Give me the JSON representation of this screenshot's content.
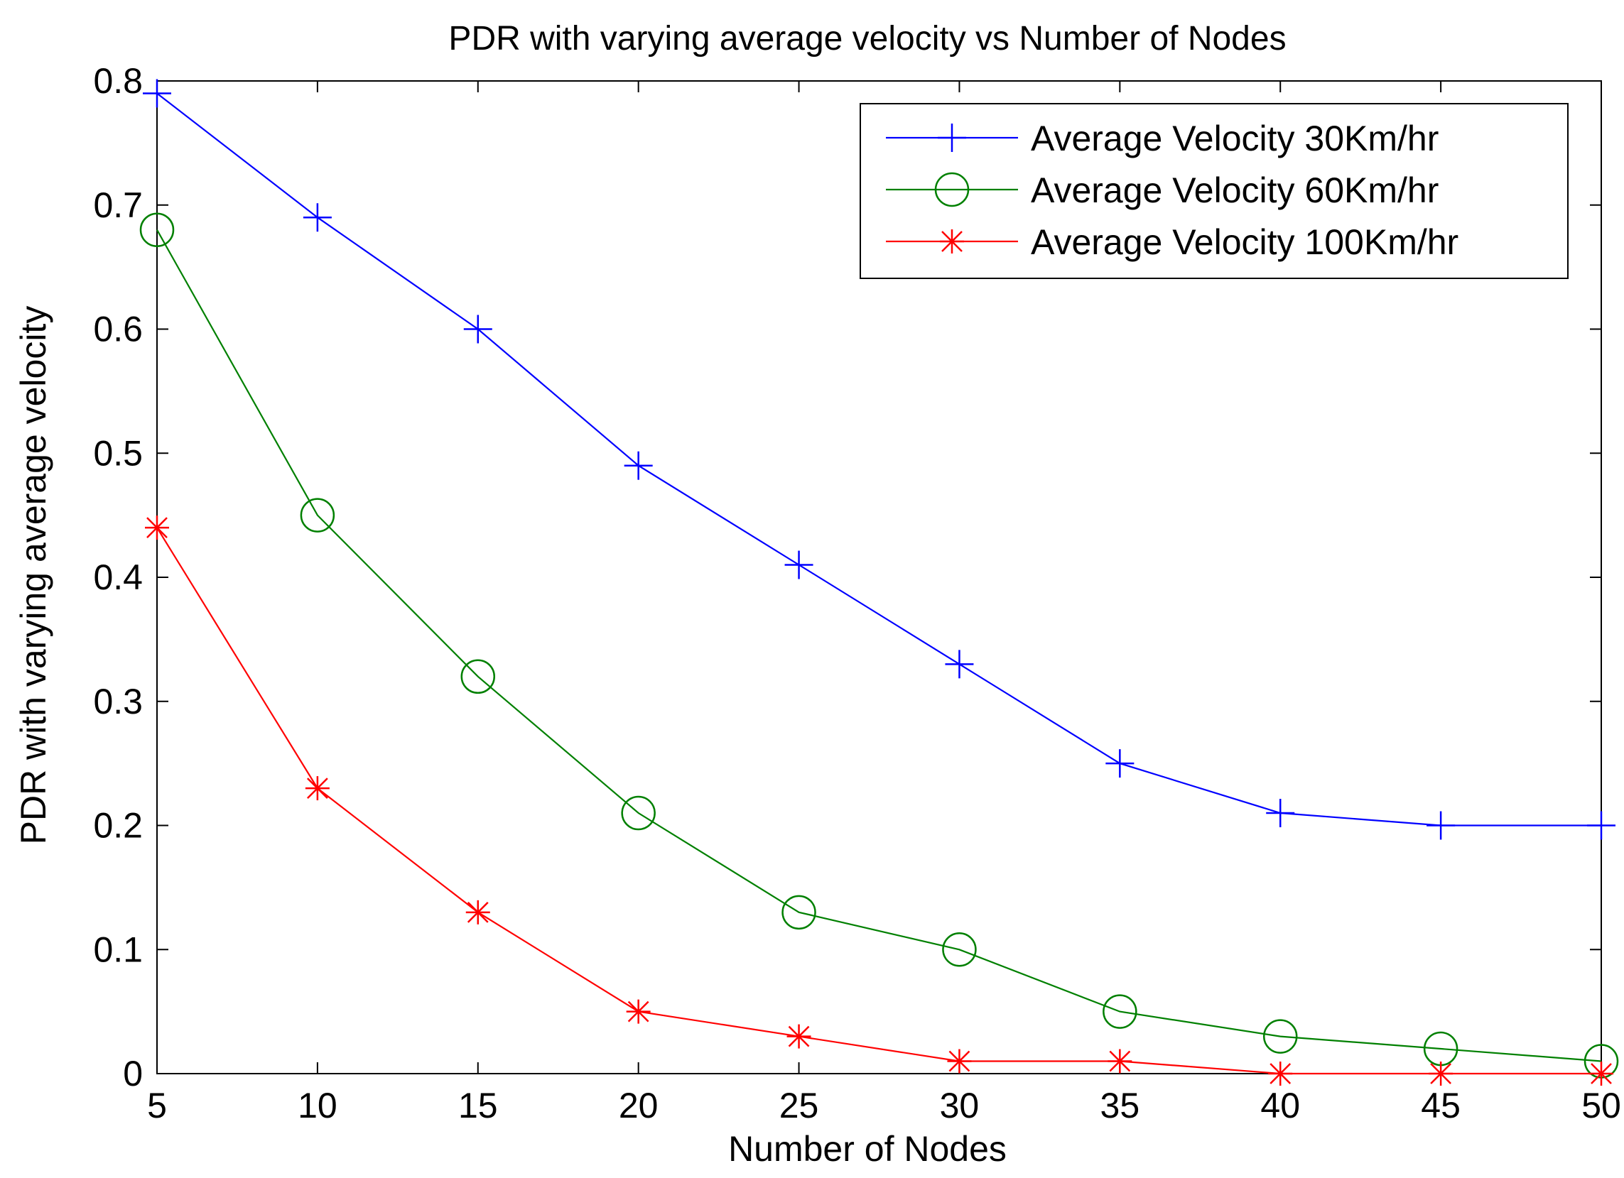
{
  "chart_data": {
    "type": "line",
    "title": "PDR with varying average velocity vs Number of Nodes",
    "xlabel": "Number of Nodes",
    "ylabel": "PDR with varying average velocity",
    "xlim": [
      5,
      50
    ],
    "ylim": [
      0,
      0.8
    ],
    "xticks": [
      5,
      10,
      15,
      20,
      25,
      30,
      35,
      40,
      45,
      50
    ],
    "yticks": [
      0,
      0.1,
      0.2,
      0.3,
      0.4,
      0.5,
      0.6,
      0.7,
      0.8
    ],
    "xtick_labels": [
      "5",
      "10",
      "15",
      "20",
      "25",
      "30",
      "35",
      "40",
      "45",
      "50"
    ],
    "ytick_labels": [
      "0",
      "0.1",
      "0.2",
      "0.3",
      "0.4",
      "0.5",
      "0.6",
      "0.7",
      "0.8"
    ],
    "grid": false,
    "legend_position": "top-right",
    "x": [
      5,
      10,
      15,
      20,
      25,
      30,
      35,
      40,
      45,
      50
    ],
    "series": [
      {
        "name": "Average Velocity 30Km/hr",
        "color": "#0000ff",
        "marker": "plus",
        "values": [
          0.79,
          0.69,
          0.6,
          0.49,
          0.41,
          0.33,
          0.25,
          0.21,
          0.2,
          0.2
        ]
      },
      {
        "name": "Average Velocity 60Km/hr",
        "color": "#008000",
        "marker": "circle",
        "values": [
          0.68,
          0.45,
          0.32,
          0.21,
          0.13,
          0.1,
          0.05,
          0.03,
          0.02,
          0.01
        ]
      },
      {
        "name": "Average Velocity 100Km/hr",
        "color": "#ff0000",
        "marker": "asterisk",
        "values": [
          0.44,
          0.23,
          0.13,
          0.05,
          0.03,
          0.01,
          0.01,
          0,
          0,
          0
        ]
      }
    ]
  }
}
